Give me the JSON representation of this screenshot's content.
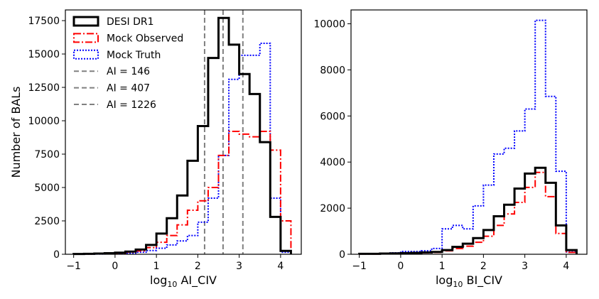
{
  "figure": {
    "shared_ylabel": "Number of BALs"
  },
  "chart_data": [
    {
      "type": "histogram",
      "xlabel_prefix": "log",
      "xlabel_sub": "10",
      "xlabel_suffix": " AI_CIV",
      "ylabel": "Number of BALs",
      "xlim": [
        -1.2,
        4.5
      ],
      "ylim": [
        0,
        18300
      ],
      "xticks": [
        -1,
        0,
        1,
        2,
        3,
        4
      ],
      "yticks": [
        0,
        2500,
        5000,
        7500,
        10000,
        12500,
        15000,
        17500
      ],
      "bin_edges": [
        -1.0,
        -0.75,
        -0.5,
        -0.25,
        0.0,
        0.25,
        0.5,
        0.75,
        1.0,
        1.25,
        1.5,
        1.75,
        2.0,
        2.25,
        2.5,
        2.75,
        3.0,
        3.25,
        3.5,
        3.75,
        4.0,
        4.25
      ],
      "series": [
        {
          "name": "DESI DR1",
          "style": "solid",
          "color": "#000000",
          "values": [
            20,
            30,
            50,
            80,
            120,
            200,
            350,
            700,
            1550,
            2700,
            4400,
            7000,
            9600,
            14700,
            17700,
            15700,
            13500,
            12000,
            8400,
            2800,
            250
          ]
        },
        {
          "name": "Mock Observed",
          "style": "dashdot",
          "color": "#ff0000",
          "values": [
            10,
            20,
            30,
            50,
            80,
            150,
            250,
            500,
            900,
            1400,
            2200,
            3300,
            4000,
            5000,
            7400,
            9200,
            9000,
            8800,
            9200,
            7800,
            2500
          ]
        },
        {
          "name": "Mock Truth",
          "style": "dotted",
          "color": "#0000ff",
          "values": [
            5,
            10,
            20,
            30,
            50,
            80,
            150,
            280,
            450,
            700,
            1000,
            1400,
            2400,
            4200,
            7400,
            13100,
            14900,
            14900,
            15800,
            4200,
            150
          ]
        }
      ],
      "vlines": [
        {
          "label": "AI = 146",
          "log_x": 2.164
        },
        {
          "label": "AI = 407",
          "log_x": 2.61
        },
        {
          "label": "AI = 1226",
          "log_x": 3.089
        }
      ],
      "legend": {
        "location": "upper-left",
        "entries": [
          "DESI DR1",
          "Mock Observed",
          "Mock Truth",
          "AI = 146",
          "AI = 407",
          "AI = 1226"
        ]
      },
      "colors": {
        "vline": "#808080"
      }
    },
    {
      "type": "histogram",
      "xlabel_prefix": "log",
      "xlabel_sub": "10",
      "xlabel_suffix": " BI_CIV",
      "ylabel": "",
      "xlim": [
        -1.2,
        4.5
      ],
      "ylim": [
        0,
        10600
      ],
      "xticks": [
        -1,
        0,
        1,
        2,
        3,
        4
      ],
      "yticks": [
        0,
        2000,
        4000,
        6000,
        8000,
        10000
      ],
      "bin_edges": [
        -1.0,
        -0.75,
        -0.5,
        -0.25,
        0.0,
        0.25,
        0.5,
        0.75,
        1.0,
        1.25,
        1.5,
        1.75,
        2.0,
        2.25,
        2.5,
        2.75,
        3.0,
        3.25,
        3.5,
        3.75,
        4.0,
        4.25
      ],
      "series": [
        {
          "name": "DESI DR1",
          "style": "solid",
          "color": "#000000",
          "values": [
            20,
            20,
            30,
            40,
            50,
            60,
            80,
            100,
            180,
            320,
            460,
            700,
            1050,
            1650,
            2150,
            2850,
            3500,
            3750,
            3100,
            1250,
            180
          ]
        },
        {
          "name": "Mock Observed",
          "style": "dashdot",
          "color": "#ff0000",
          "values": [
            10,
            10,
            20,
            30,
            40,
            50,
            60,
            80,
            150,
            250,
            350,
            520,
            780,
            1250,
            1750,
            2250,
            2900,
            3550,
            2500,
            900,
            80
          ]
        },
        {
          "name": "Mock Truth",
          "style": "dotted",
          "color": "#0000ff",
          "values": [
            10,
            20,
            30,
            60,
            120,
            120,
            150,
            250,
            1100,
            1250,
            1100,
            2100,
            3000,
            4350,
            4600,
            5350,
            6300,
            10150,
            6850,
            3600,
            100
          ]
        }
      ]
    }
  ]
}
